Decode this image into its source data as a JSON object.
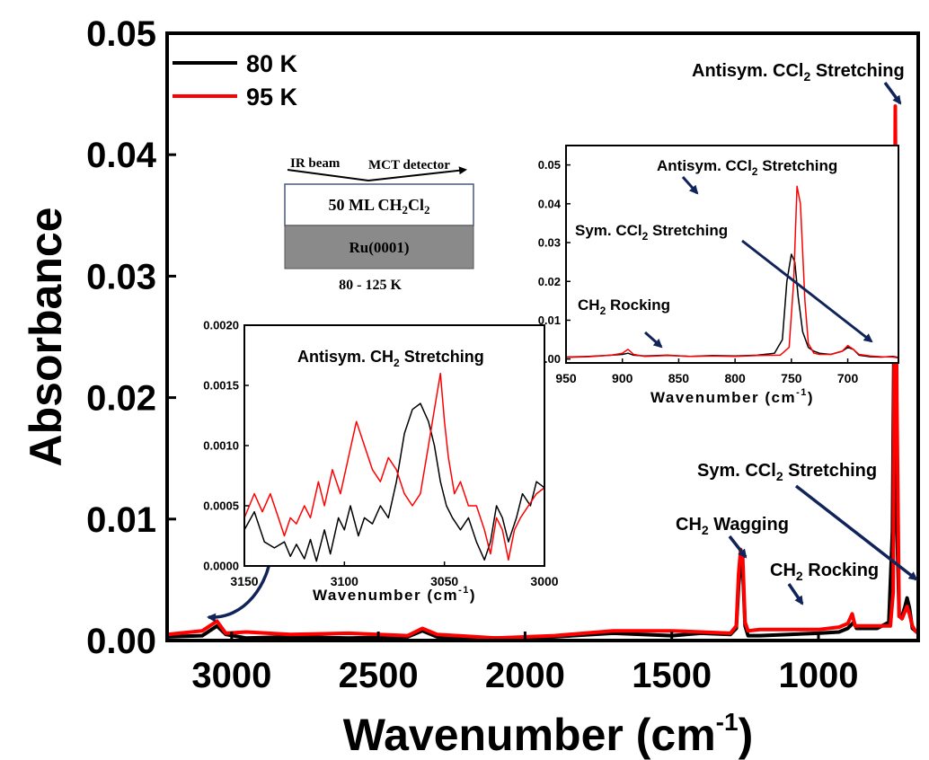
{
  "colors": {
    "series_80K": "#000000",
    "series_95K": "#ff0000",
    "arrow": "#10245a",
    "substrate": "#8a8a8a"
  },
  "chart_data": [
    {
      "type": "line",
      "id": "main",
      "xlabel": "Wavenumber (cm-1)",
      "xlabel_main": "Wavenumber (cm",
      "xlabel_sup": "-1",
      "xlabel_close": ")",
      "ylabel": "Absorbance",
      "xlim": [
        3220,
        660
      ],
      "ylim": [
        0,
        0.05
      ],
      "x_reversed": true,
      "xticks": [
        "3000",
        "2500",
        "2000",
        "1500",
        "1000"
      ],
      "xtick_values": [
        3000,
        2500,
        2000,
        1500,
        1000
      ],
      "yticks": [
        "0.00",
        "0.01",
        "0.02",
        "0.03",
        "0.04",
        "0.05"
      ],
      "ytick_values": [
        0,
        0.01,
        0.02,
        0.03,
        0.04,
        0.05
      ],
      "legend": {
        "position": "top-left",
        "entries": [
          "80 K",
          "95 K"
        ]
      },
      "series": [
        {
          "name": "80 K",
          "color": "#000000",
          "x": [
            3220,
            3100,
            3050,
            3020,
            2950,
            2800,
            2600,
            2400,
            2350,
            2300,
            2100,
            1900,
            1700,
            1500,
            1400,
            1300,
            1280,
            1272,
            1265,
            1258,
            1250,
            1240,
            1200,
            1100,
            1000,
            930,
            900,
            880,
            870,
            800,
            760,
            748,
            742,
            735,
            725,
            715,
            705,
            698,
            690,
            680,
            670,
            660
          ],
          "y": [
            0.0003,
            0.0004,
            0.0012,
            0.0005,
            0.0002,
            0.0003,
            0.0002,
            0.0003,
            0.0008,
            0.0003,
            0.0002,
            0.0003,
            0.0006,
            0.0004,
            0.0006,
            0.0005,
            0.001,
            0.0045,
            0.0065,
            0.0058,
            0.0012,
            0.0004,
            0.0004,
            0.0005,
            0.0006,
            0.0007,
            0.001,
            0.0015,
            0.001,
            0.001,
            0.0015,
            0.009,
            0.0265,
            0.012,
            0.002,
            0.002,
            0.0028,
            0.0035,
            0.0027,
            0.001,
            0.0008,
            0.0006
          ]
        },
        {
          "name": "95 K",
          "color": "#ff0000",
          "x": [
            3220,
            3100,
            3050,
            3020,
            2950,
            2800,
            2600,
            2400,
            2350,
            2300,
            2100,
            1900,
            1700,
            1500,
            1400,
            1300,
            1280,
            1272,
            1265,
            1258,
            1250,
            1240,
            1200,
            1100,
            1000,
            930,
            900,
            885,
            875,
            800,
            755,
            745,
            738,
            733,
            725,
            715,
            705,
            698,
            690,
            680,
            670,
            660
          ],
          "y": [
            0.0005,
            0.0008,
            0.0016,
            0.0006,
            0.0007,
            0.0005,
            0.0006,
            0.0004,
            0.001,
            0.0005,
            0.0002,
            0.0004,
            0.0008,
            0.0008,
            0.0007,
            0.0006,
            0.0012,
            0.0055,
            0.0075,
            0.0068,
            0.0015,
            0.0008,
            0.0009,
            0.0009,
            0.0009,
            0.0011,
            0.0014,
            0.0022,
            0.0012,
            0.0012,
            0.0012,
            0.004,
            0.044,
            0.02,
            0.002,
            0.0018,
            0.0024,
            0.0028,
            0.0022,
            0.0012,
            0.0008,
            0.0006
          ]
        }
      ],
      "annotations": {
        "antisym_ccl2": {
          "pre": "Antisym. CCl",
          "sub": "2",
          "post": " Stretching"
        },
        "sym_ccl2": {
          "pre": "Sym. CCl",
          "sub": "2",
          "post": " Stretching"
        },
        "ch2_wagging": {
          "pre": "CH",
          "sub": "2",
          "post": " Wagging"
        },
        "ch2_rocking": {
          "pre": "CH",
          "sub": "2",
          "post": " Rocking"
        }
      }
    },
    {
      "type": "line",
      "id": "inset_ch2",
      "xlabel": "Wavenumber (cm-1)",
      "xlabel_main": "Wavenumber (cm",
      "xlabel_sup": "-1",
      "xlabel_close": ")",
      "xlim": [
        3150,
        3000
      ],
      "ylim": [
        0,
        0.002
      ],
      "x_reversed": true,
      "xticks": [
        "3150",
        "3100",
        "3050",
        "3000"
      ],
      "xtick_values": [
        3150,
        3100,
        3050,
        3000
      ],
      "yticks": [
        "0.0000",
        "0.0005",
        "0.0010",
        "0.0015",
        "0.0020"
      ],
      "ytick_values": [
        0,
        0.0005,
        0.001,
        0.0015,
        0.002
      ],
      "annotation": {
        "pre": "Antisym. CH",
        "sub": "2",
        "post": " Stretching"
      },
      "series": [
        {
          "name": "80 K",
          "color": "#000000",
          "x": [
            3150,
            3145,
            3140,
            3135,
            3130,
            3127,
            3124,
            3120,
            3117,
            3114,
            3110,
            3107,
            3103,
            3100,
            3097,
            3093,
            3090,
            3086,
            3082,
            3078,
            3074,
            3070,
            3066,
            3062,
            3058,
            3055,
            3052,
            3049,
            3046,
            3042,
            3038,
            3034,
            3030,
            3027,
            3024,
            3021,
            3018,
            3014,
            3011,
            3007,
            3004,
            3000
          ],
          "y": [
            0.0003,
            0.00045,
            0.0002,
            0.00015,
            0.0002,
            8e-05,
            0.00018,
            6e-05,
            0.00022,
            4e-05,
            0.0003,
            0.0001,
            0.0004,
            0.0003,
            0.0005,
            0.00025,
            0.0004,
            0.00035,
            0.0005,
            0.0004,
            0.0007,
            0.0011,
            0.0013,
            0.00135,
            0.0012,
            0.001,
            0.0007,
            0.0005,
            0.0004,
            0.0003,
            0.0004,
            0.0002,
            5e-05,
            0.0002,
            0.0005,
            0.0004,
            0.0002,
            0.0004,
            0.0006,
            0.0005,
            0.0007,
            0.00065
          ]
        },
        {
          "name": "95 K",
          "color": "#ff0000",
          "x": [
            3150,
            3145,
            3141,
            3137,
            3133,
            3130,
            3127,
            3124,
            3120,
            3117,
            3113,
            3110,
            3106,
            3102,
            3098,
            3094,
            3090,
            3086,
            3082,
            3078,
            3074,
            3070,
            3066,
            3062,
            3058,
            3055,
            3052,
            3050,
            3048,
            3045,
            3042,
            3038,
            3034,
            3030,
            3027,
            3024,
            3021,
            3018,
            3015,
            3012,
            3008,
            3004,
            3000
          ],
          "y": [
            0.0004,
            0.0006,
            0.00045,
            0.0006,
            0.0004,
            0.00025,
            0.0004,
            0.00035,
            0.0005,
            0.0004,
            0.0007,
            0.0005,
            0.0008,
            0.0006,
            0.0009,
            0.0012,
            0.001,
            0.0008,
            0.0007,
            0.0009,
            0.0008,
            0.0006,
            0.0005,
            0.0006,
            0.001,
            0.0013,
            0.0016,
            0.0012,
            0.0009,
            0.0006,
            0.0007,
            0.0005,
            0.0005,
            0.0003,
            0.0001,
            0.0004,
            0.0003,
            5e-05,
            0.0003,
            0.0004,
            0.0005,
            0.0006,
            0.00065
          ]
        }
      ]
    },
    {
      "type": "line",
      "id": "inset_ccl2",
      "xlabel": "Wavenumber (cm-1)",
      "xlabel_main": "Wavenumber (cm",
      "xlabel_sup": "-1",
      "xlabel_close": ")",
      "xlim": [
        950,
        655
      ],
      "ylim": [
        -0.001,
        0.055
      ],
      "x_reversed": true,
      "xticks": [
        "950",
        "900",
        "850",
        "800",
        "750",
        "700"
      ],
      "xtick_values": [
        950,
        900,
        850,
        800,
        750,
        700
      ],
      "yticks": [
        "0.00",
        "0.01",
        "0.02",
        "0.03",
        "0.04",
        "0.05"
      ],
      "ytick_values": [
        0,
        0.01,
        0.02,
        0.03,
        0.04,
        0.05
      ],
      "annotations": {
        "antisym_ccl2": {
          "pre": "Antisym. CCl",
          "sub": "2",
          "post": " Stretching"
        },
        "sym_ccl2": {
          "pre": "Sym. CCl",
          "sub": "2",
          "post": " Stretching"
        },
        "ch2_rocking": {
          "pre": "CH",
          "sub": "2",
          "post": " Rocking"
        }
      },
      "series": [
        {
          "name": "80 K",
          "color": "#000000",
          "x": [
            950,
            930,
            910,
            900,
            895,
            890,
            880,
            860,
            840,
            820,
            800,
            780,
            765,
            758,
            754,
            750,
            747,
            744,
            740,
            735,
            730,
            725,
            715,
            705,
            700,
            695,
            690,
            680,
            670,
            660,
            655
          ],
          "y": [
            0.0005,
            0.0007,
            0.001,
            0.0012,
            0.0015,
            0.001,
            0.0008,
            0.001,
            0.0007,
            0.0009,
            0.0008,
            0.001,
            0.0015,
            0.005,
            0.02,
            0.027,
            0.025,
            0.016,
            0.007,
            0.003,
            0.002,
            0.0015,
            0.0012,
            0.002,
            0.003,
            0.0025,
            0.001,
            0.0006,
            0.0005,
            0.0007,
            0.0004
          ]
        },
        {
          "name": "95 K",
          "color": "#ff0000",
          "x": [
            950,
            930,
            910,
            900,
            895,
            890,
            880,
            860,
            840,
            820,
            800,
            780,
            760,
            752,
            748,
            745,
            742,
            738,
            735,
            730,
            725,
            715,
            705,
            700,
            695,
            690,
            680,
            670,
            660,
            655
          ],
          "y": [
            0.0004,
            0.0006,
            0.001,
            0.0015,
            0.0025,
            0.0012,
            0.0007,
            0.0009,
            0.0007,
            0.0008,
            0.0007,
            0.0009,
            0.001,
            0.003,
            0.02,
            0.0445,
            0.04,
            0.015,
            0.004,
            0.0015,
            0.0012,
            0.0012,
            0.002,
            0.0035,
            0.0025,
            0.0012,
            0.0008,
            0.0006,
            0.0005,
            0.0003
          ]
        }
      ]
    }
  ],
  "schematic": {
    "ir_beam": "IR beam",
    "detector": "MCT detector",
    "film_pre": "50 ML CH",
    "film_sub1": "2",
    "film_mid": "Cl",
    "film_sub2": "2",
    "substrate": "Ru(0001)",
    "temperature": "80 - 125 K"
  }
}
